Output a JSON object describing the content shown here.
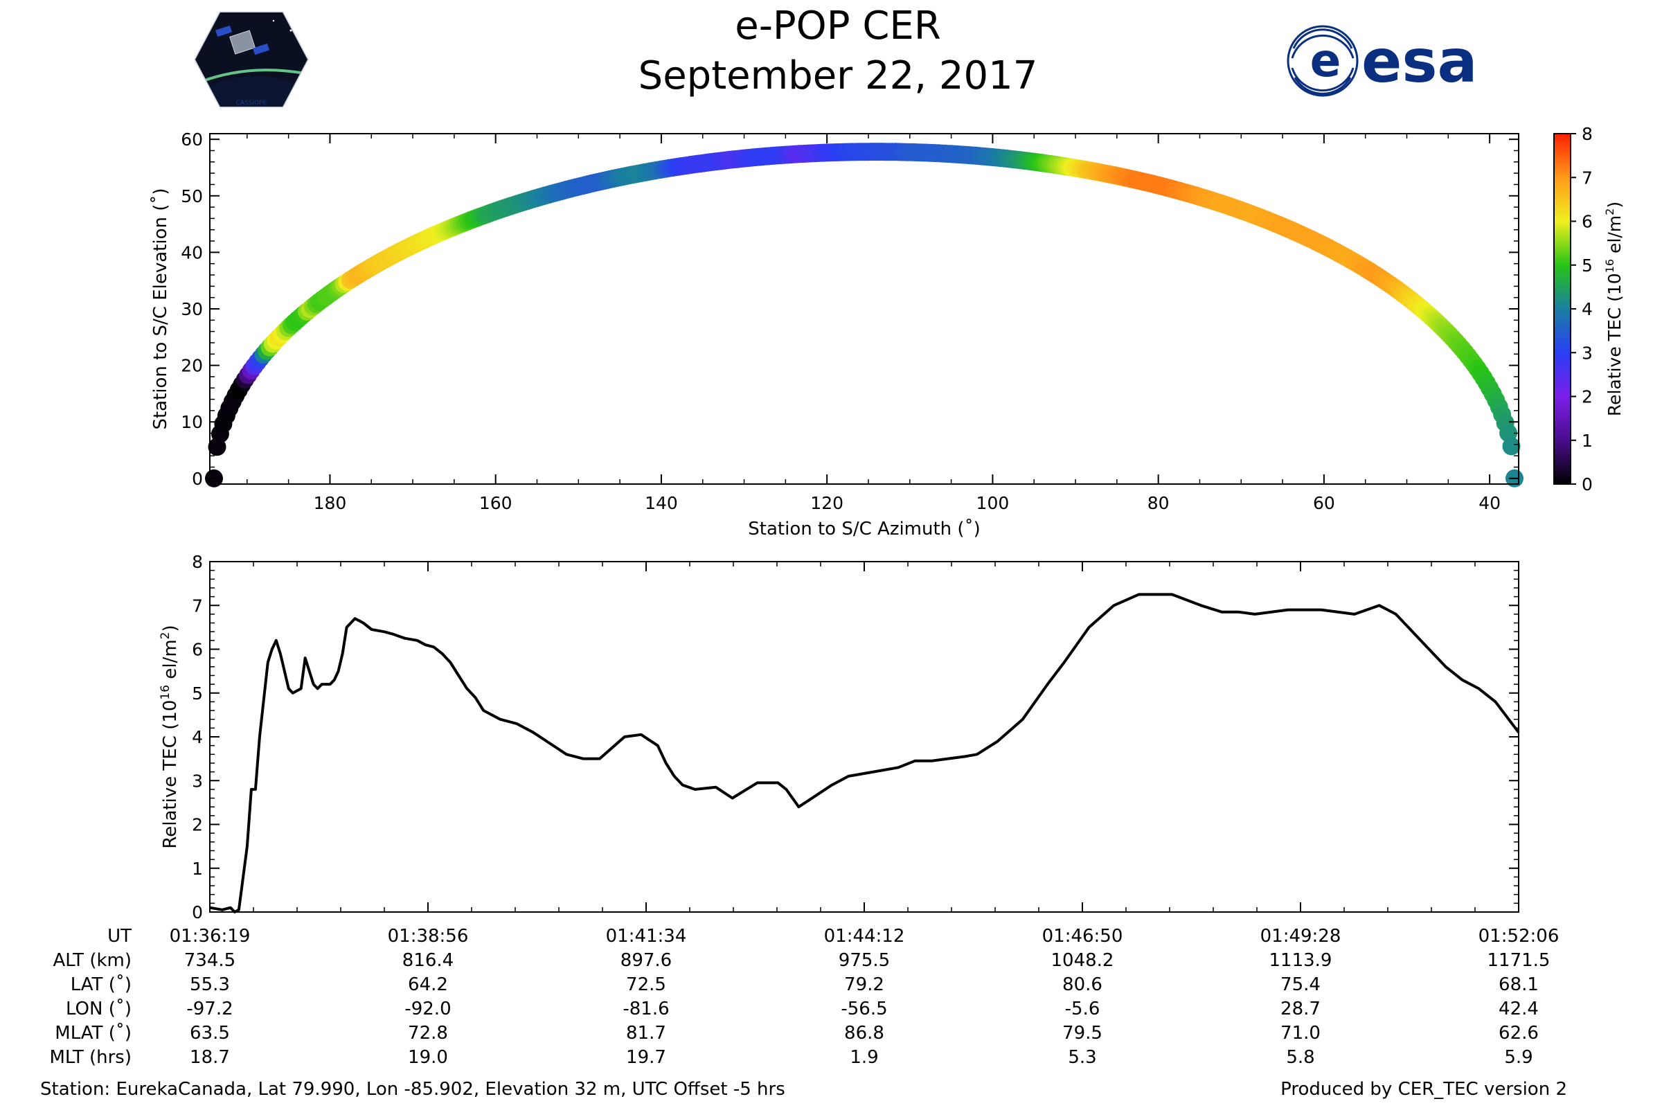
{
  "header": {
    "title": "e-POP CER",
    "date": "September 22, 2017",
    "left_logo_text": "CASSIOPE",
    "right_logo_text": "esa"
  },
  "chart_data": [
    {
      "type": "scatter",
      "title": "",
      "xlabel": "Station to S/C Azimuth (˚)",
      "ylabel": "Station to S/C Elevation (˚)",
      "xlim": [
        194.5,
        36.5
      ],
      "ylim": [
        -1,
        61
      ],
      "x_ticks": [
        180,
        160,
        140,
        120,
        100,
        80,
        60,
        40
      ],
      "x_tick_labels": [
        "180",
        "160",
        "140",
        "120",
        "100",
        "80",
        "60",
        "40"
      ],
      "y_ticks": [
        0,
        10,
        20,
        30,
        40,
        50,
        60
      ],
      "y_tick_labels": [
        "0",
        "10",
        "20",
        "30",
        "40",
        "50",
        "60"
      ],
      "azimuth_start": 194,
      "azimuth_peak": 114,
      "azimuth_end": 37,
      "peak_elevation": 57.8,
      "color_by": "Relative TEC",
      "colorbar": {
        "label": "Relative TEC (10",
        "label_sup": "16",
        "label_tail": " el/m",
        "label_sup2": "2",
        "label_end": ")",
        "range": [
          0,
          8
        ],
        "ticks": [
          "0",
          "1",
          "2",
          "3",
          "4",
          "5",
          "6",
          "7",
          "8"
        ]
      }
    },
    {
      "type": "line",
      "title": "",
      "ylabel": "Relative TEC (10",
      "ylabel_sup": "16",
      "ylabel_tail": " el/m",
      "ylabel_sup2": "2",
      "ylabel_end": ")",
      "xlim_minutes": [
        0,
        15.78
      ],
      "ylim": [
        0,
        8
      ],
      "y_ticks": [
        0,
        1,
        2,
        3,
        4,
        5,
        6,
        7,
        8
      ],
      "y_tick_labels": [
        "0",
        "1",
        "2",
        "3",
        "4",
        "5",
        "6",
        "7",
        "8"
      ],
      "series": [
        {
          "name": "Relative TEC",
          "x_minutes": [
            0,
            0.15,
            0.25,
            0.3,
            0.35,
            0.45,
            0.5,
            0.55,
            0.6,
            0.7,
            0.75,
            0.8,
            0.85,
            0.9,
            0.95,
            1.0,
            1.1,
            1.15,
            1.25,
            1.3,
            1.35,
            1.45,
            1.5,
            1.55,
            1.6,
            1.65,
            1.75,
            1.85,
            1.95,
            2.1,
            2.2,
            2.35,
            2.5,
            2.6,
            2.7,
            2.8,
            2.9,
            3.0,
            3.1,
            3.2,
            3.3,
            3.5,
            3.7,
            3.9,
            4.1,
            4.3,
            4.5,
            4.7,
            5.0,
            5.2,
            5.4,
            5.5,
            5.6,
            5.7,
            5.85,
            6.1,
            6.3,
            6.6,
            6.85,
            6.95,
            7.1,
            7.3,
            7.5,
            7.7,
            8.0,
            8.3,
            8.5,
            8.7,
            8.9,
            9.1,
            9.25,
            9.5,
            9.8,
            10.1,
            10.3,
            10.6,
            10.9,
            11.2,
            11.6,
            11.95,
            12.2,
            12.4,
            12.6,
            13.0,
            13.4,
            13.8,
            14.1,
            14.3,
            14.5,
            14.7,
            14.9,
            15.1,
            15.3,
            15.5,
            15.78
          ],
          "values": [
            0.1,
            0.05,
            0.1,
            0.0,
            0.05,
            1.5,
            2.8,
            2.8,
            4.0,
            5.7,
            6.0,
            6.2,
            5.9,
            5.5,
            5.1,
            5.0,
            5.1,
            5.8,
            5.2,
            5.1,
            5.2,
            5.2,
            5.3,
            5.5,
            5.9,
            6.5,
            6.7,
            6.6,
            6.45,
            6.4,
            6.35,
            6.25,
            6.2,
            6.1,
            6.05,
            5.9,
            5.7,
            5.4,
            5.1,
            4.9,
            4.6,
            4.4,
            4.3,
            4.1,
            3.85,
            3.6,
            3.5,
            3.5,
            4.0,
            4.05,
            3.8,
            3.4,
            3.1,
            2.9,
            2.8,
            2.85,
            2.6,
            2.95,
            2.95,
            2.8,
            2.4,
            2.65,
            2.9,
            3.1,
            3.2,
            3.3,
            3.45,
            3.45,
            3.5,
            3.55,
            3.6,
            3.9,
            4.4,
            5.2,
            5.7,
            6.5,
            7.0,
            7.25,
            7.25,
            7.0,
            6.85,
            6.85,
            6.8,
            6.9,
            6.9,
            6.8,
            7.0,
            6.8,
            6.4,
            6.0,
            5.6,
            5.3,
            5.1,
            4.8,
            4.1
          ]
        }
      ]
    }
  ],
  "ephemeris": {
    "row_labels": [
      "UT",
      "ALT (km)",
      "LAT (˚)",
      "LON (˚)",
      "MLAT (˚)",
      "MLT (hrs)"
    ],
    "columns": [
      [
        "01:36:19",
        "734.5",
        "55.3",
        "-97.2",
        "63.5",
        "18.7"
      ],
      [
        "01:38:56",
        "816.4",
        "64.2",
        "-92.0",
        "72.8",
        "19.0"
      ],
      [
        "01:41:34",
        "897.6",
        "72.5",
        "-81.6",
        "81.7",
        "19.7"
      ],
      [
        "01:44:12",
        "975.5",
        "79.2",
        "-56.5",
        "86.8",
        "1.9"
      ],
      [
        "01:46:50",
        "1048.2",
        "80.6",
        "-5.6",
        "79.5",
        "5.3"
      ],
      [
        "01:49:28",
        "1113.9",
        "75.4",
        "28.7",
        "71.0",
        "5.8"
      ],
      [
        "01:52:06",
        "1171.5",
        "68.1",
        "42.4",
        "62.6",
        "5.9"
      ]
    ]
  },
  "footer": {
    "station": "Station: EurekaCanada, Lat 79.990, Lon -85.902, Elevation 32 m, UTC Offset -5 hrs",
    "produced_by": "Produced by CER_TEC version 2"
  },
  "colors": {
    "line": "#000000",
    "cmap": [
      "#000000",
      "#4b0d8c",
      "#7a1fe8",
      "#2a3ff5",
      "#1a7fa0",
      "#27c415",
      "#f0f020",
      "#ff9a1a",
      "#ff2000"
    ]
  }
}
